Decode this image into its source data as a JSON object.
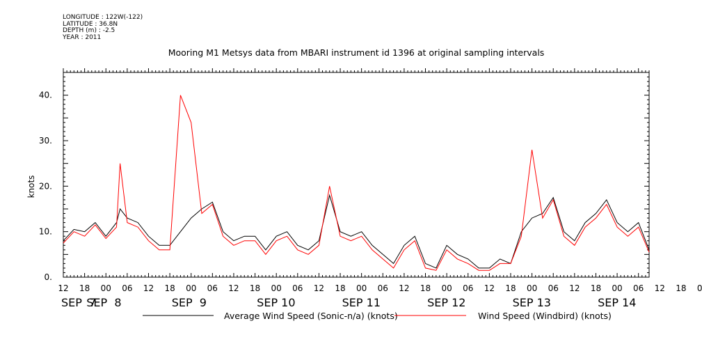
{
  "meta": {
    "longitude": "LONGITUDE : 122W(-122)",
    "latitude": "LATITUDE : 36.8N",
    "depth": "DEPTH (m) : -2.5",
    "year": "YEAR : 2011"
  },
  "chart_data": {
    "type": "line",
    "title": "Mooring M1 Metsys data from MBARI instrument id 1396 at original sampling intervals",
    "xlabel": "",
    "ylabel": "knots",
    "xlim": [
      "2011-09-07T12:00",
      "2011-09-14T09:00"
    ],
    "ylim": [
      0,
      45
    ],
    "y_ticks": [
      0,
      10,
      20,
      30,
      40
    ],
    "y_tick_labels": [
      "0.",
      "10.",
      "20.",
      "30.",
      "40."
    ],
    "x_hour_labels": [
      "12",
      "18",
      "00",
      "06",
      "12",
      "18",
      "00",
      "06",
      "12",
      "18",
      "00",
      "06",
      "12",
      "18",
      "00",
      "06",
      "12",
      "18",
      "00",
      "06",
      "12",
      "18",
      "00",
      "06",
      "12",
      "18",
      "00",
      "06",
      "12",
      "18",
      "00",
      "06"
    ],
    "x_day_labels": [
      {
        "label": "SEP  7",
        "x": "2011-09-07T12:00"
      },
      {
        "label": "SEP  8",
        "x": "2011-09-08T00:00"
      },
      {
        "label": "SEP  9",
        "x": "2011-09-09T00:00"
      },
      {
        "label": "SEP 10",
        "x": "2011-09-10T00:00"
      },
      {
        "label": "SEP 11",
        "x": "2011-09-11T00:00"
      },
      {
        "label": "SEP 12",
        "x": "2011-09-12T00:00"
      },
      {
        "label": "SEP 13",
        "x": "2011-09-13T00:00"
      },
      {
        "label": "SEP 14",
        "x": "2011-09-14T00:00"
      }
    ],
    "grid": false,
    "legend": "bottom",
    "series": [
      {
        "name": "Average Wind Speed (Sonic-n/a) (knots)",
        "color": "#000000",
        "x": [
          "2011-09-07T12:00",
          "2011-09-07T15:00",
          "2011-09-07T18:00",
          "2011-09-07T21:00",
          "2011-09-08T00:00",
          "2011-09-08T03:00",
          "2011-09-08T04:00",
          "2011-09-08T06:00",
          "2011-09-08T09:00",
          "2011-09-08T12:00",
          "2011-09-08T15:00",
          "2011-09-08T18:00",
          "2011-09-08T21:00",
          "2011-09-09T00:00",
          "2011-09-09T03:00",
          "2011-09-09T06:00",
          "2011-09-09T09:00",
          "2011-09-09T12:00",
          "2011-09-09T15:00",
          "2011-09-09T18:00",
          "2011-09-09T21:00",
          "2011-09-10T00:00",
          "2011-09-10T03:00",
          "2011-09-10T06:00",
          "2011-09-10T09:00",
          "2011-09-10T12:00",
          "2011-09-10T15:00",
          "2011-09-10T18:00",
          "2011-09-10T21:00",
          "2011-09-11T00:00",
          "2011-09-11T03:00",
          "2011-09-11T06:00",
          "2011-09-11T09:00",
          "2011-09-11T12:00",
          "2011-09-11T15:00",
          "2011-09-11T18:00",
          "2011-09-11T21:00",
          "2011-09-12T00:00",
          "2011-09-12T03:00",
          "2011-09-12T06:00",
          "2011-09-12T09:00",
          "2011-09-12T12:00",
          "2011-09-12T15:00",
          "2011-09-12T18:00",
          "2011-09-12T21:00",
          "2011-09-13T00:00",
          "2011-09-13T03:00",
          "2011-09-13T06:00",
          "2011-09-13T09:00",
          "2011-09-13T12:00",
          "2011-09-13T15:00",
          "2011-09-13T18:00",
          "2011-09-13T21:00",
          "2011-09-14T00:00",
          "2011-09-14T03:00",
          "2011-09-14T06:00",
          "2011-09-14T09:00"
        ],
        "values": [
          8,
          10.5,
          10,
          12,
          9,
          12,
          15,
          13,
          12,
          9,
          7,
          7,
          10,
          13,
          15,
          16.5,
          10,
          8,
          9,
          9,
          6,
          9,
          10,
          7,
          6,
          8,
          18,
          10,
          9,
          10,
          7,
          5,
          3,
          7,
          9,
          3,
          2,
          7,
          5,
          4,
          2,
          2,
          4,
          3,
          10,
          13,
          14,
          17.5,
          10,
          8,
          12,
          14,
          17,
          12,
          10,
          12,
          6
        ]
      },
      {
        "name": "Wind Speed (Windbird) (knots)",
        "color": "#ff0000",
        "x": [
          "2011-09-07T12:00",
          "2011-09-07T15:00",
          "2011-09-07T18:00",
          "2011-09-07T21:00",
          "2011-09-08T00:00",
          "2011-09-08T03:00",
          "2011-09-08T04:00",
          "2011-09-08T06:00",
          "2011-09-08T09:00",
          "2011-09-08T12:00",
          "2011-09-08T15:00",
          "2011-09-08T18:00",
          "2011-09-08T21:00",
          "2011-09-09T00:00",
          "2011-09-09T03:00",
          "2011-09-09T06:00",
          "2011-09-09T09:00",
          "2011-09-09T12:00",
          "2011-09-09T15:00",
          "2011-09-09T18:00",
          "2011-09-09T21:00",
          "2011-09-10T00:00",
          "2011-09-10T03:00",
          "2011-09-10T06:00",
          "2011-09-10T09:00",
          "2011-09-10T12:00",
          "2011-09-10T15:00",
          "2011-09-10T18:00",
          "2011-09-10T21:00",
          "2011-09-11T00:00",
          "2011-09-11T03:00",
          "2011-09-11T06:00",
          "2011-09-11T09:00",
          "2011-09-11T12:00",
          "2011-09-11T15:00",
          "2011-09-11T18:00",
          "2011-09-11T21:00",
          "2011-09-12T00:00",
          "2011-09-12T03:00",
          "2011-09-12T06:00",
          "2011-09-12T09:00",
          "2011-09-12T12:00",
          "2011-09-12T15:00",
          "2011-09-12T18:00",
          "2011-09-12T21:00",
          "2011-09-13T00:00",
          "2011-09-13T03:00",
          "2011-09-13T06:00",
          "2011-09-13T09:00",
          "2011-09-13T12:00",
          "2011-09-13T15:00",
          "2011-09-13T18:00",
          "2011-09-13T21:00",
          "2011-09-14T00:00",
          "2011-09-14T03:00",
          "2011-09-14T06:00",
          "2011-09-14T09:00"
        ],
        "values": [
          7.5,
          10,
          9,
          11.5,
          8.5,
          11,
          25,
          12,
          11,
          8,
          6,
          6,
          40,
          34,
          14,
          16,
          9,
          7,
          8,
          8,
          5,
          8,
          9,
          6,
          5,
          7,
          20,
          9,
          8,
          9,
          6,
          4,
          2,
          6,
          8,
          2,
          1.5,
          6,
          4,
          3,
          1.5,
          1.5,
          3,
          3,
          9,
          28,
          13,
          17,
          9,
          7,
          11,
          13,
          16,
          11,
          9,
          11,
          5.5
        ]
      }
    ]
  }
}
